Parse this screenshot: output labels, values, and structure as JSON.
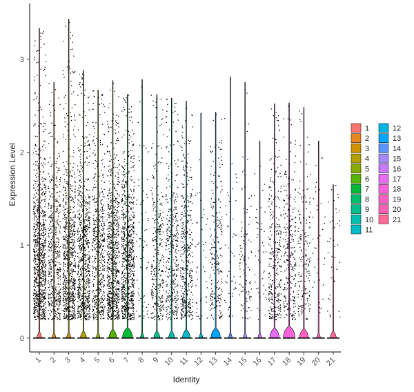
{
  "chart_data": {
    "type": "violin",
    "xlabel": "Identity",
    "ylabel": "Expression Level",
    "ylim": [
      -0.15,
      3.6
    ],
    "yticks": [
      0,
      1,
      2,
      3
    ],
    "grid": false,
    "legend_placement": "right",
    "categories": [
      "1",
      "2",
      "3",
      "4",
      "5",
      "6",
      "7",
      "8",
      "9",
      "10",
      "11",
      "12",
      "13",
      "14",
      "15",
      "16",
      "17",
      "18",
      "19",
      "20",
      "21"
    ],
    "colors": [
      "#F8766D",
      "#E7851E",
      "#D09400",
      "#B2A100",
      "#8BAB00",
      "#55B400",
      "#00BA38",
      "#00BE6C",
      "#00C08E",
      "#00C0AF",
      "#00BCCB",
      "#00B3E3",
      "#00A5FF",
      "#5C95FF",
      "#A58AFF",
      "#C77CFF",
      "#E76BF3",
      "#F962DD",
      "#FF61C3",
      "#FF63B5",
      "#FF6A98"
    ],
    "max_value": [
      3.33,
      2.75,
      3.43,
      2.88,
      2.67,
      2.77,
      2.62,
      2.78,
      2.62,
      2.58,
      2.55,
      2.42,
      2.43,
      2.81,
      2.75,
      2.12,
      2.52,
      2.53,
      2.48,
      2.12,
      1.65
    ],
    "zero_density": [
      0.2,
      0.1,
      0.15,
      0.3,
      0.1,
      0.45,
      0.65,
      0.1,
      0.3,
      0.3,
      0.45,
      0.1,
      0.6,
      0.1,
      0.1,
      0.1,
      0.6,
      0.8,
      0.55,
      0.1,
      0.3
    ],
    "point_density": [
      1.0,
      0.55,
      0.85,
      0.8,
      0.6,
      0.85,
      0.9,
      0.08,
      0.35,
      0.4,
      0.45,
      0.05,
      0.25,
      0.06,
      0.12,
      0.05,
      0.35,
      0.3,
      0.2,
      0.04,
      0.05
    ]
  }
}
